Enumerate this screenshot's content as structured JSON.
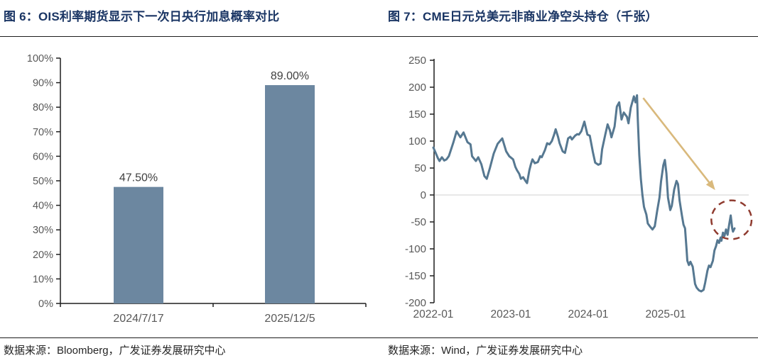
{
  "figure6": {
    "title": "图 6：OIS利率期货显示下一次日央行加息概率对比",
    "source": "数据来源：Bloomberg，广发证券发展研究中心"
  },
  "figure7": {
    "title": "图 7：CME日元兑美元非商业净空头持仓（千张）",
    "source": "数据来源：Wind，广发证券发展研究中心"
  },
  "colors": {
    "title": "#1A3564",
    "bar": "#6C87A0",
    "line": "#567891",
    "arrow": "#D9B97C",
    "circle": "#8F3B2F",
    "axis": "#1f1f1f",
    "tick_label": "#595959",
    "value_label": "#404040",
    "zero_line": "#D9D9D9",
    "source_text": "#262626"
  },
  "chart_data": [
    {
      "type": "bar",
      "title": "OIS利率期货显示下一次日央行加息概率对比",
      "categories": [
        "2024/7/17",
        "2025/12/5"
      ],
      "values": [
        47.5,
        89.0
      ],
      "value_labels": [
        "47.50%",
        "89.00%"
      ],
      "ylim": [
        0,
        100
      ],
      "y_ticks": [
        "0%",
        "10%",
        "20%",
        "30%",
        "40%",
        "50%",
        "60%",
        "70%",
        "80%",
        "90%",
        "100%"
      ],
      "grid": false,
      "legend": "none"
    },
    {
      "type": "line",
      "title": "CME日元兑美元非商业净空头持仓（千张）",
      "ylim": [
        -200,
        250
      ],
      "xlim": [
        2022,
        2026
      ],
      "y_ticks": [
        250,
        200,
        150,
        100,
        50,
        0,
        -50,
        -100,
        -150,
        -200
      ],
      "x_ticks": [
        "2022-01",
        "2023-01",
        "2024-01",
        "2025-01"
      ],
      "grid": false,
      "zero_line": true,
      "legend": "none",
      "series": [
        {
          "name": "CME日元兑美元非商业净空头持仓(千张)",
          "points": [
            [
              2022.0,
              88
            ],
            [
              2022.03,
              78
            ],
            [
              2022.06,
              68
            ],
            [
              2022.08,
              63
            ],
            [
              2022.11,
              70
            ],
            [
              2022.14,
              64
            ],
            [
              2022.17,
              66
            ],
            [
              2022.2,
              72
            ],
            [
              2022.26,
              98
            ],
            [
              2022.3,
              118
            ],
            [
              2022.35,
              107
            ],
            [
              2022.39,
              116
            ],
            [
              2022.44,
              98
            ],
            [
              2022.48,
              94
            ],
            [
              2022.5,
              72
            ],
            [
              2022.55,
              63
            ],
            [
              2022.58,
              70
            ],
            [
              2022.62,
              57
            ],
            [
              2022.66,
              35
            ],
            [
              2022.69,
              30
            ],
            [
              2022.73,
              50
            ],
            [
              2022.78,
              77
            ],
            [
              2022.83,
              95
            ],
            [
              2022.89,
              105
            ],
            [
              2022.94,
              81
            ],
            [
              2022.98,
              72
            ],
            [
              2023.03,
              66
            ],
            [
              2023.06,
              52
            ],
            [
              2023.08,
              46
            ],
            [
              2023.11,
              39
            ],
            [
              2023.13,
              30
            ],
            [
              2023.16,
              33
            ],
            [
              2023.19,
              26
            ],
            [
              2023.21,
              22
            ],
            [
              2023.24,
              46
            ],
            [
              2023.26,
              57
            ],
            [
              2023.28,
              66
            ],
            [
              2023.31,
              59
            ],
            [
              2023.35,
              61
            ],
            [
              2023.38,
              72
            ],
            [
              2023.4,
              70
            ],
            [
              2023.44,
              83
            ],
            [
              2023.47,
              96
            ],
            [
              2023.5,
              94
            ],
            [
              2023.53,
              100
            ],
            [
              2023.56,
              112
            ],
            [
              2023.58,
              122
            ],
            [
              2023.61,
              108
            ],
            [
              2023.63,
              96
            ],
            [
              2023.67,
              81
            ],
            [
              2023.7,
              78
            ],
            [
              2023.74,
              105
            ],
            [
              2023.77,
              108
            ],
            [
              2023.79,
              103
            ],
            [
              2023.83,
              110
            ],
            [
              2023.86,
              113
            ],
            [
              2023.88,
              112
            ],
            [
              2023.91,
              118
            ],
            [
              2023.95,
              136
            ],
            [
              2023.99,
              112
            ],
            [
              2024.02,
              110
            ],
            [
              2024.06,
              80
            ],
            [
              2024.09,
              60
            ],
            [
              2024.13,
              56
            ],
            [
              2024.16,
              58
            ],
            [
              2024.18,
              85
            ],
            [
              2024.22,
              112
            ],
            [
              2024.25,
              131
            ],
            [
              2024.28,
              120
            ],
            [
              2024.3,
              107
            ],
            [
              2024.34,
              127
            ],
            [
              2024.37,
              164
            ],
            [
              2024.4,
              172
            ],
            [
              2024.43,
              140
            ],
            [
              2024.46,
              153
            ],
            [
              2024.5,
              145
            ],
            [
              2024.52,
              133
            ],
            [
              2024.55,
              162
            ],
            [
              2024.59,
              183
            ],
            [
              2024.61,
              172
            ],
            [
              2024.63,
              185
            ],
            [
              2024.64,
              140
            ],
            [
              2024.66,
              74
            ],
            [
              2024.68,
              30
            ],
            [
              2024.7,
              0
            ],
            [
              2024.72,
              -22
            ],
            [
              2024.73,
              -27
            ],
            [
              2024.75,
              -36
            ],
            [
              2024.77,
              -53
            ],
            [
              2024.8,
              -59
            ],
            [
              2024.83,
              -64
            ],
            [
              2024.86,
              -58
            ],
            [
              2024.89,
              -30
            ],
            [
              2024.92,
              -5
            ],
            [
              2024.94,
              25
            ],
            [
              2024.97,
              55
            ],
            [
              2024.99,
              65
            ],
            [
              2025.01,
              40
            ],
            [
              2025.03,
              -5
            ],
            [
              2025.06,
              -28
            ],
            [
              2025.08,
              -20
            ],
            [
              2025.11,
              10
            ],
            [
              2025.14,
              26
            ],
            [
              2025.16,
              20
            ],
            [
              2025.18,
              -10
            ],
            [
              2025.21,
              -38
            ],
            [
              2025.23,
              -55
            ],
            [
              2025.25,
              -62
            ],
            [
              2025.27,
              -100
            ],
            [
              2025.28,
              -122
            ],
            [
              2025.3,
              -130
            ],
            [
              2025.32,
              -124
            ],
            [
              2025.35,
              -133
            ],
            [
              2025.38,
              -165
            ],
            [
              2025.4,
              -172
            ],
            [
              2025.43,
              -177
            ],
            [
              2025.46,
              -179
            ],
            [
              2025.49,
              -176
            ],
            [
              2025.51,
              -163
            ],
            [
              2025.54,
              -140
            ],
            [
              2025.56,
              -131
            ],
            [
              2025.58,
              -134
            ],
            [
              2025.61,
              -122
            ],
            [
              2025.63,
              -103
            ],
            [
              2025.65,
              -95
            ],
            [
              2025.67,
              -84
            ],
            [
              2025.69,
              -89
            ],
            [
              2025.71,
              -79
            ],
            [
              2025.72,
              -85
            ],
            [
              2025.74,
              -70
            ],
            [
              2025.76,
              -76
            ],
            [
              2025.78,
              -64
            ],
            [
              2025.8,
              -74
            ],
            [
              2025.82,
              -55
            ],
            [
              2025.84,
              -38
            ],
            [
              2025.86,
              -62
            ],
            [
              2025.87,
              -68
            ],
            [
              2025.89,
              -62
            ]
          ]
        }
      ],
      "annotations": {
        "arrow": {
          "from": [
            2024.71,
            180
          ],
          "to": [
            2025.64,
            9
          ]
        },
        "ellipse": {
          "center": [
            2025.85,
            -46
          ],
          "rx_years": 0.26,
          "ry_units": 36
        }
      }
    }
  ]
}
